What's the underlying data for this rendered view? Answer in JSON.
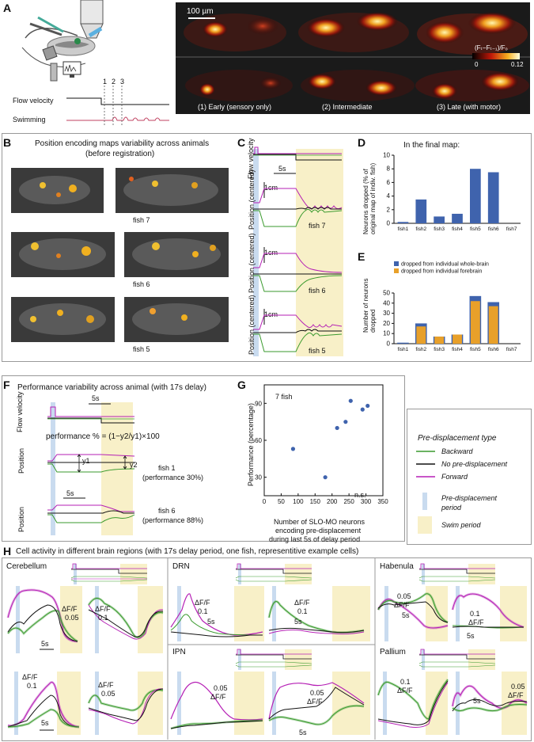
{
  "panels": {
    "A": {
      "label": "A",
      "scalebar": "100 µm",
      "colorbar_title": "(Fₜ−Fₜ₋₁)/F₀",
      "colorbar_min": "0",
      "colorbar_max": "0.12",
      "flow_label": "Flow velocity",
      "swim_label": "Swimming",
      "markers": [
        "1",
        "2",
        "3"
      ],
      "stages": [
        "(1) Early (sensory only)",
        "(2) Intermediate",
        "(3) Late (with motor)"
      ]
    },
    "B": {
      "label": "B",
      "title_line1": "Position encoding maps variability across animals",
      "title_line2": "(before registration)",
      "fish": [
        "fish 7",
        "fish 6",
        "fish 5"
      ]
    },
    "C": {
      "label": "C",
      "flow_label": "Flow velocity",
      "time_scale": "5s",
      "pos_scale": "1cm",
      "pos_label": "Position (centered)",
      "fish": [
        "fish 7",
        "fish 6",
        "fish 5"
      ]
    },
    "D": {
      "label": "D",
      "title": "In the final map:",
      "ylabel": "Neurons dropped (% of original map of indiv. fish)"
    },
    "E": {
      "label": "E",
      "ylabel": "Number of neurons dropped",
      "legend": [
        "dropped from individual whole-brain",
        "dropped from individual forebrain"
      ]
    },
    "F": {
      "label": "F",
      "title": "Performance variability across animal (with 17s delay)",
      "flow_label": "Flow velocity",
      "time_scale": "5s",
      "formula": "performance % = (1−y2/y1)×100",
      "y1": "y1",
      "y2": "y2",
      "pos_label": "Position",
      "fish1": "fish 1",
      "fish1_perf": "(performance 30%)",
      "fish6": "fish 6",
      "fish6_perf": "(performance 88%)"
    },
    "G": {
      "label": "G",
      "annotation": "7 fish",
      "ns": "n.s.",
      "ylabel": "Performance (percentage)",
      "xlabel_1": "Number of SLO-MO neurons",
      "xlabel_2": "encoding pre-displacement",
      "xlabel_3": "during last 5s of delay period"
    },
    "legend": {
      "title": "Pre-displacement type",
      "items": [
        "Backward",
        "No pre-displacement",
        "Forward"
      ],
      "pre_period_1": "Pre-displacement",
      "pre_period_2": "period",
      "swim_period": "Swim period"
    },
    "H": {
      "label": "H",
      "title": "Cell activity in different brain regions (with 17s delay period, one fish, representitive example cells)",
      "regions": [
        "Cerebellum",
        "DRN",
        "Habenula",
        "IPN",
        "Pallium"
      ],
      "dff": "ΔF/F",
      "scale_005": "0.05",
      "scale_01": "0.1",
      "time_scale": "5s"
    }
  },
  "colors": {
    "backward": "#3a9a2e",
    "none": "#111111",
    "forward": "#b51fb5",
    "bar_blue": "#3f63ad",
    "bar_orange": "#e8a02a",
    "swim_shade": "#f8f0c8",
    "pre_shade": "#c9dbef"
  },
  "chart_data": [
    {
      "type": "bar",
      "panel": "D",
      "title": "In the final map:",
      "categories": [
        "fish1",
        "fish2",
        "fish3",
        "fish4",
        "fish5",
        "fish6",
        "fish7"
      ],
      "values": [
        0.2,
        3.5,
        1.0,
        1.4,
        8.0,
        7.5,
        0
      ],
      "ylabel": "Neurons dropped (% of original map of indiv. fish)",
      "ylim": [
        0,
        10
      ],
      "yticks": [
        "0",
        "2",
        "4",
        "6",
        "8",
        "10"
      ]
    },
    {
      "type": "bar",
      "panel": "E",
      "categories": [
        "fish1",
        "fish2",
        "fish3",
        "fish4",
        "fish5",
        "fish6",
        "fish7"
      ],
      "series": [
        {
          "name": "dropped from individual whole-brain",
          "values": [
            1,
            20,
            7,
            9,
            47,
            41,
            0
          ]
        },
        {
          "name": "dropped from individual forebrain",
          "values": [
            0,
            17,
            7,
            9,
            42,
            37,
            0
          ]
        }
      ],
      "ylabel": "Number of neurons dropped",
      "ylim": [
        0,
        50
      ],
      "yticks": [
        "0",
        "10",
        "20",
        "30",
        "40",
        "50"
      ]
    },
    {
      "type": "scatter",
      "panel": "G",
      "x": [
        85,
        180,
        215,
        240,
        255,
        290,
        305
      ],
      "y": [
        53,
        30,
        70,
        75,
        92,
        85,
        88
      ],
      "xlim": [
        0,
        350
      ],
      "ylim": [
        15,
        105
      ],
      "xticks": [
        "0",
        "50",
        "100",
        "150",
        "200",
        "250",
        "300",
        "350"
      ],
      "yticks": [
        "30",
        "60",
        "90"
      ],
      "ylabel": "Performance (percentage)"
    }
  ]
}
